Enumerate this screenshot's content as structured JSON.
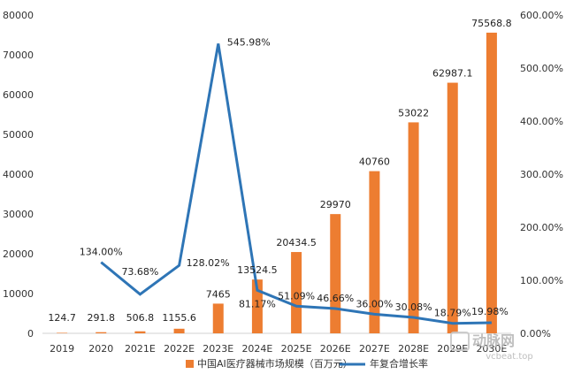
{
  "chart_data": {
    "type": "bar+line",
    "categories": [
      "2019",
      "2020",
      "2021E",
      "2022E",
      "2023E",
      "2024E",
      "2025E",
      "2026E",
      "2027E",
      "2028E",
      "2029E",
      "2030E"
    ],
    "series": [
      {
        "name": "中国AI医疗器械市场规模（百万元）",
        "type": "bar",
        "axis": "left",
        "color": "#ed7d31",
        "values": [
          124.7,
          291.8,
          506.8,
          1155.6,
          7465,
          13524.5,
          20434.5,
          29970,
          40760,
          53022,
          62987.1,
          75568.8
        ],
        "labels": [
          "124.7",
          "291.8",
          "506.8",
          "1155.6",
          "7465",
          "13524.5",
          "20434.5",
          "29970",
          "40760",
          "53022",
          "62987.1",
          "75568.8"
        ]
      },
      {
        "name": "年复合增长率",
        "type": "line",
        "axis": "right",
        "color": "#2e75b6",
        "values": [
          null,
          134.0,
          73.68,
          128.02,
          545.98,
          81.17,
          51.09,
          46.66,
          36.0,
          30.08,
          18.79,
          19.98
        ],
        "labels": [
          "",
          "134.00%",
          "73.68%",
          "128.02%",
          "545.98%",
          "81.17%",
          "51.09%",
          "46.66%",
          "36.00%",
          "30.08%",
          "18.79%",
          "19.98%"
        ]
      }
    ],
    "y_left": {
      "min": 0,
      "max": 80000,
      "ticks": [
        0,
        10000,
        20000,
        30000,
        40000,
        50000,
        60000,
        70000,
        80000
      ],
      "tick_labels": [
        "0",
        "10000",
        "20000",
        "30000",
        "40000",
        "50000",
        "60000",
        "70000",
        "80000"
      ]
    },
    "y_right": {
      "min": 0,
      "max": 600,
      "ticks": [
        0,
        100,
        200,
        300,
        400,
        500,
        600
      ],
      "tick_labels": [
        "0.00%",
        "100.00%",
        "200.00%",
        "300.00%",
        "400.00%",
        "500.00%",
        "600.00%"
      ]
    },
    "grid": false,
    "legend_position": "bottom"
  },
  "watermark": {
    "cn": "动脉网",
    "en": "vcbeat.top"
  }
}
